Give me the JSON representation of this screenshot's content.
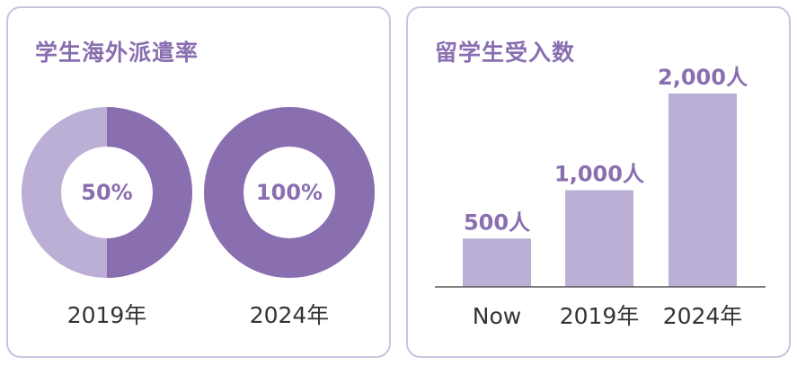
{
  "left_panel": {
    "title": "学生海外派遣率"
  },
  "right_panel": {
    "title": "留学生受入数"
  },
  "colors": {
    "dark_purple": "#8a6fb0",
    "light_purple": "#bcafd5",
    "border": "#cdc2de",
    "axis": "#555555"
  },
  "chart_data": [
    {
      "type": "pie",
      "title": "学生海外派遣率",
      "donuts": [
        {
          "label": "2019年",
          "value": 50,
          "value_label": "50%"
        },
        {
          "label": "2024年",
          "value": 100,
          "value_label": "100%"
        }
      ]
    },
    {
      "type": "bar",
      "title": "留学生受入数",
      "categories": [
        "Now",
        "2019年",
        "2024年"
      ],
      "values": [
        500,
        1000,
        2000
      ],
      "value_labels": [
        "500人",
        "1,000人",
        "2,000人"
      ],
      "ylim": [
        0,
        2000
      ],
      "grid": false,
      "legend": "none"
    }
  ]
}
